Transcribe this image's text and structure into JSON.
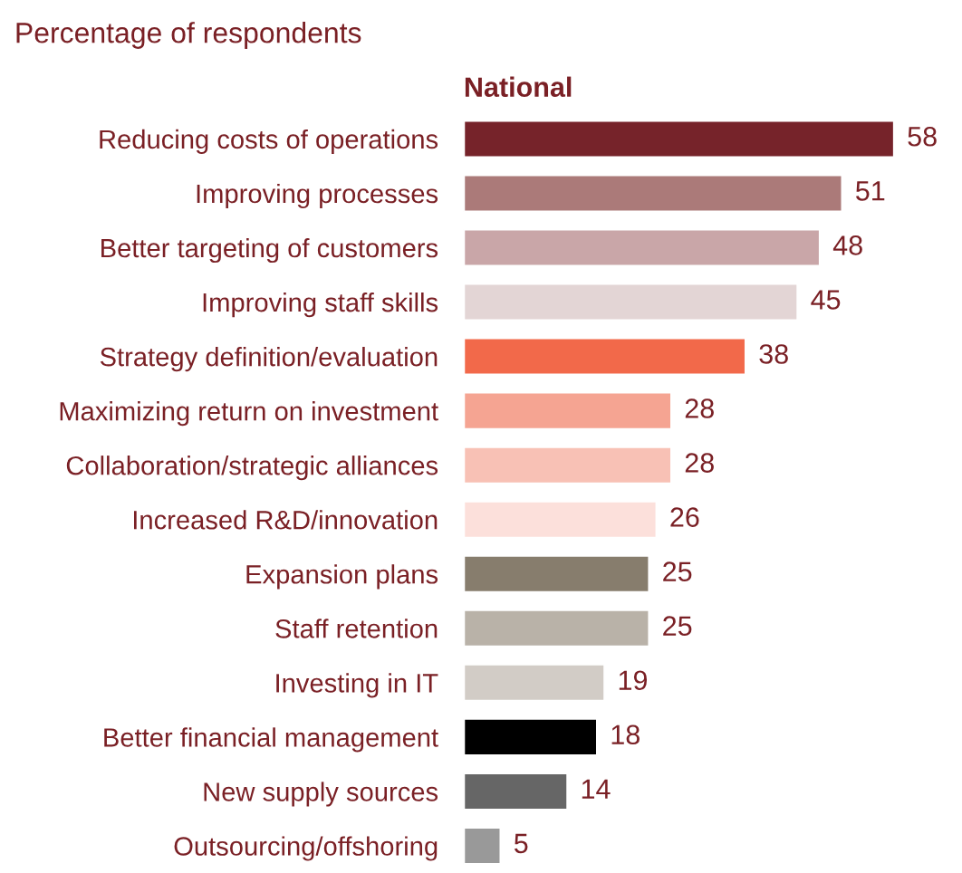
{
  "chart_data": {
    "type": "bar",
    "orientation": "horizontal",
    "subtitle": "Percentage of respondents",
    "xlabel": "National",
    "data_labels": true,
    "grid": false,
    "legend": false,
    "categories": [
      "Reducing costs of operations",
      "Improving processes",
      "Better targeting of customers",
      "Improving staff skills",
      "Strategy definition/evaluation",
      "Maximizing return on investment",
      "Collaboration/strategic alliances",
      "Increased R&D/innovation",
      "Expansion plans",
      "Staff retention",
      "Investing in IT",
      "Better financial management",
      "New supply sources",
      "Outsourcing/offshoring"
    ],
    "values": [
      58,
      51,
      48,
      45,
      38,
      28,
      28,
      26,
      25,
      25,
      19,
      18,
      14,
      5
    ],
    "colors": [
      "#76232a",
      "#ab7a79",
      "#c9a6a8",
      "#e3d5d5",
      "#f2694a",
      "#f5a492",
      "#f8c1b5",
      "#fce0db",
      "#877d6d",
      "#b9b2a8",
      "#d2ccc6",
      "#000000",
      "#666666",
      "#999999"
    ]
  }
}
